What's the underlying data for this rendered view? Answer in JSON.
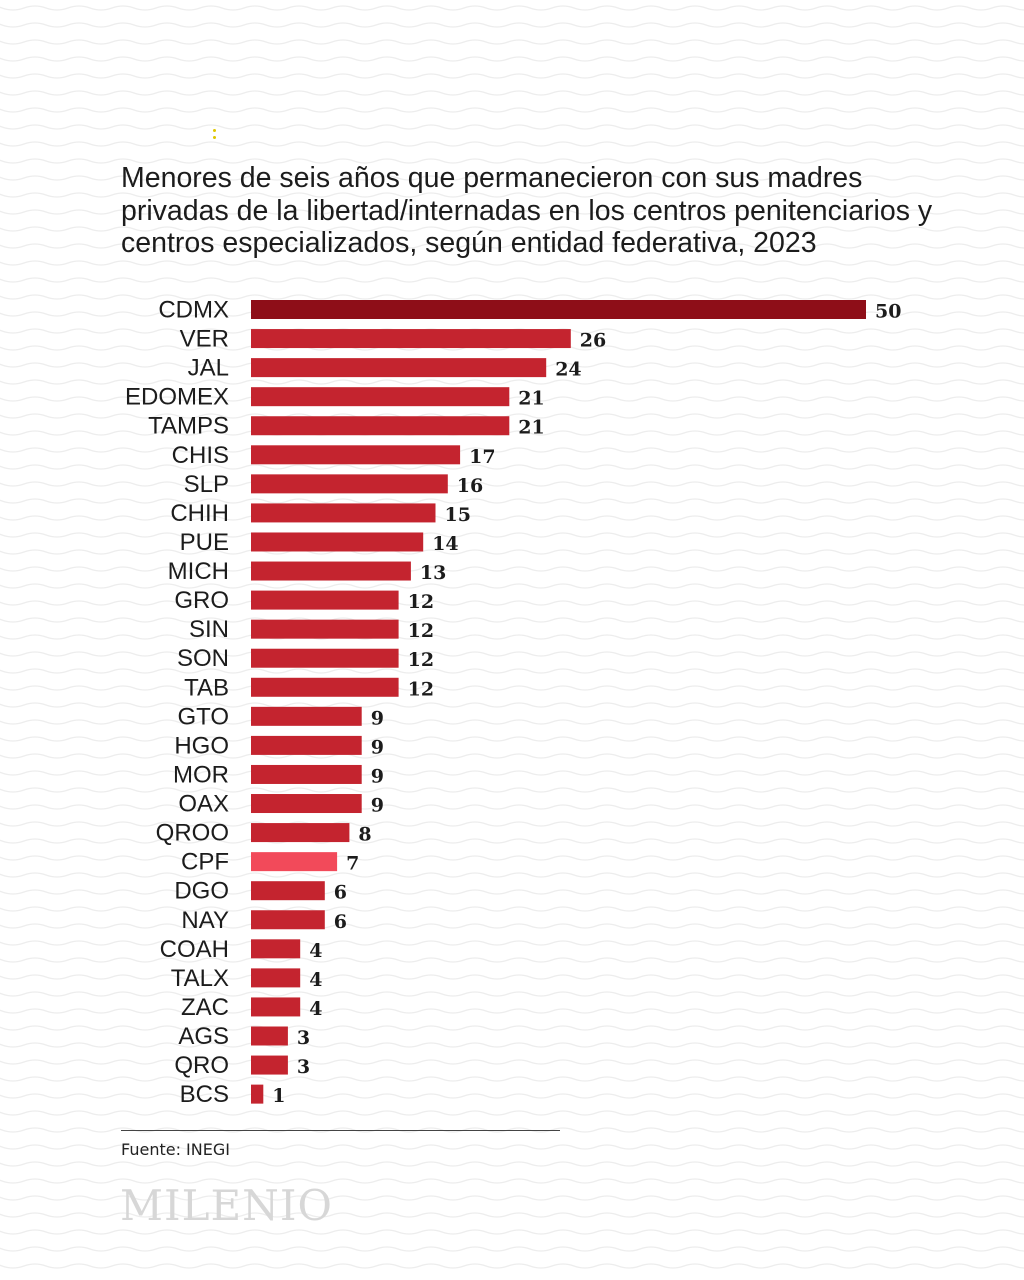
{
  "header": {
    "title": "Menores de seis años que permanecieron con sus madres privadas de la libertad/internadas en los centros penitenciarios y centros especializados, según entidad federativa, 2023"
  },
  "chart_data": {
    "type": "bar",
    "orientation": "horizontal",
    "title": "Menores de seis años que permanecieron con sus madres privadas de la libertad/internadas en los centros penitenciarios y centros especializados, según entidad federativa, 2023",
    "categories": [
      "CDMX",
      "VER",
      "JAL",
      "EDOMEX",
      "TAMPS",
      "CHIS",
      "SLP",
      "CHIH",
      "PUE",
      "MICH",
      "GRO",
      "SIN",
      "SON",
      "TAB",
      "GTO",
      "HGO",
      "MOR",
      "OAX",
      "QROO",
      "CPF",
      "DGO",
      "NAY",
      "COAH",
      "TALX",
      "ZAC",
      "AGS",
      "QRO",
      "BCS"
    ],
    "values": [
      50,
      26,
      24,
      21,
      21,
      17,
      16,
      15,
      14,
      13,
      12,
      12,
      12,
      12,
      9,
      9,
      9,
      9,
      8,
      7,
      6,
      6,
      4,
      4,
      4,
      3,
      3,
      1
    ],
    "data_labels": [
      "50",
      "26",
      "24",
      "21",
      "21",
      "17",
      "16",
      "15",
      "14",
      "13",
      "12",
      "12",
      "12",
      "12",
      "9",
      "9",
      "9",
      "9",
      "8",
      "7",
      "6",
      "6",
      "4",
      "4",
      "4",
      "3",
      "3",
      "1"
    ],
    "xlim": [
      0,
      50
    ],
    "grid": false,
    "legend": "none",
    "colors": {
      "default": "#c4242f",
      "top": "#8e0e18",
      "highlight": "#f24a5a"
    },
    "highlighted": {
      "CDMX": "top",
      "CPF": "highlight"
    }
  },
  "footer": {
    "source": "Fuente: INEGI",
    "logo_text": "MILENIO"
  }
}
